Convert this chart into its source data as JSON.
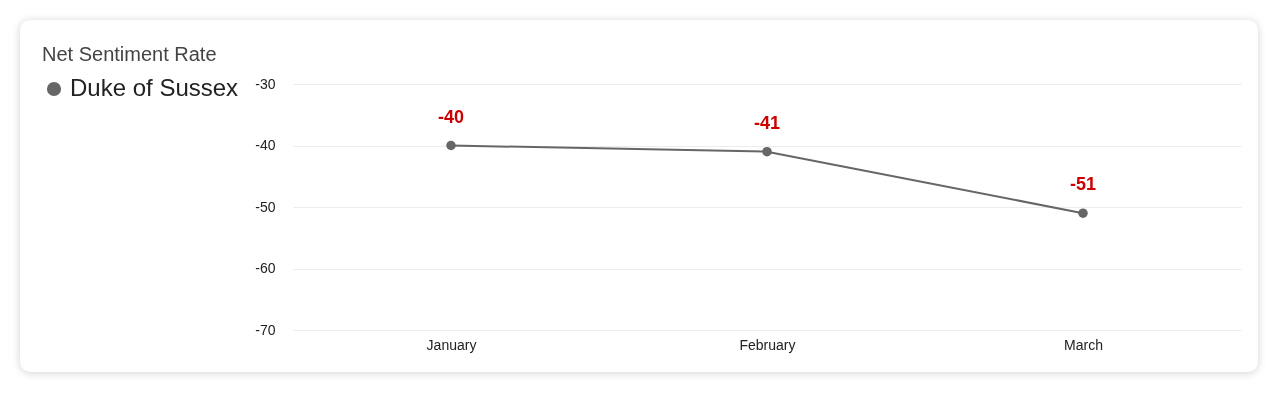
{
  "chart_data": {
    "type": "line",
    "title": "Net Sentiment Rate",
    "categories": [
      "January",
      "February",
      "March"
    ],
    "series": [
      {
        "name": "Duke of Sussex",
        "color": "#666666",
        "values": [
          -40,
          -41,
          -51
        ]
      }
    ],
    "ylim": [
      -70,
      -30
    ],
    "yticks": [
      -70,
      -60,
      -50,
      -40,
      -30
    ],
    "grid": "y",
    "legend": "top left",
    "marker": "circle",
    "data_labels": true
  }
}
